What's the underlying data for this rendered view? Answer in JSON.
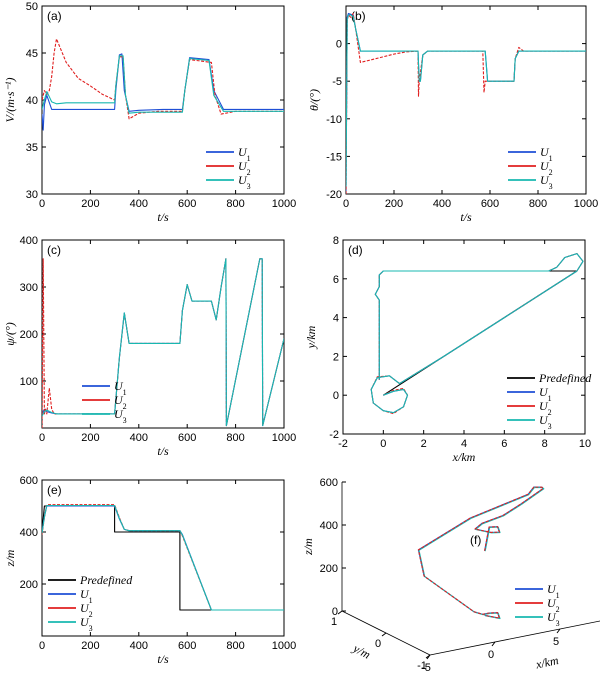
{
  "colors": {
    "U1": "#1f4fd6",
    "U2": "#e02020",
    "U3": "#18b8b0",
    "Predefined": "#000000"
  },
  "chart_data": [
    {
      "panel": "(a)",
      "type": "line",
      "xlabel": "t/s",
      "ylabel": "V/(m·s⁻¹)",
      "xlim": [
        0,
        1000
      ],
      "ylim": [
        30,
        50
      ],
      "xticks": [
        0,
        200,
        400,
        600,
        800,
        1000
      ],
      "yticks": [
        30,
        35,
        40,
        45,
        50
      ],
      "legend": [
        "U1",
        "U2",
        "U3"
      ],
      "legend_loc": "bottom-right",
      "series": [
        {
          "name": "U1",
          "x": [
            0,
            5,
            10,
            20,
            40,
            60,
            100,
            200,
            300,
            305,
            320,
            330,
            340,
            360,
            400,
            500,
            580,
            590,
            610,
            690,
            710,
            750,
            800,
            1000
          ],
          "y": [
            38.5,
            36.8,
            39.5,
            40.5,
            39,
            39,
            39,
            39,
            39,
            41,
            44.8,
            44.9,
            41,
            38.8,
            38.9,
            39,
            39,
            41,
            44.5,
            44.3,
            41,
            39,
            39,
            39
          ]
        },
        {
          "name": "U2",
          "x": [
            0,
            10,
            20,
            30,
            40,
            50,
            60,
            100,
            150,
            200,
            250,
            300,
            305,
            320,
            335,
            345,
            360,
            400,
            480,
            580,
            590,
            610,
            700,
            715,
            740,
            800,
            1000
          ],
          "y": [
            40,
            41,
            40.6,
            41,
            42.5,
            45,
            46.5,
            44,
            42.3,
            41.5,
            40.6,
            40,
            41.5,
            44.6,
            44.6,
            40.5,
            38,
            38.6,
            38.8,
            38.8,
            41,
            44.3,
            44,
            40.5,
            38.5,
            38.8,
            38.8
          ]
        },
        {
          "name": "U3",
          "x": [
            0,
            10,
            20,
            40,
            60,
            100,
            200,
            300,
            305,
            320,
            335,
            345,
            360,
            400,
            500,
            580,
            590,
            610,
            690,
            710,
            750,
            800,
            1000
          ],
          "y": [
            39,
            40,
            40.9,
            39.8,
            39.6,
            39.7,
            39.7,
            39.7,
            41.5,
            44.7,
            44.7,
            40.5,
            38.6,
            38.7,
            38.7,
            38.7,
            41,
            44.4,
            44.2,
            40.5,
            38.8,
            38.8,
            38.8
          ]
        }
      ]
    },
    {
      "panel": "(b)",
      "type": "line",
      "xlabel": "t/s",
      "ylabel": "θ/(°)",
      "xlim": [
        0,
        1000
      ],
      "ylim": [
        -20,
        5
      ],
      "xticks": [
        0,
        200,
        400,
        600,
        800,
        1000
      ],
      "yticks": [
        -20,
        -15,
        -10,
        -5,
        0
      ],
      "legend": [
        "U1",
        "U2",
        "U3"
      ],
      "legend_loc": "bottom-right",
      "series": [
        {
          "name": "U1",
          "x": [
            0,
            5,
            10,
            20,
            30,
            40,
            60,
            100,
            200,
            300,
            305,
            310,
            320,
            340,
            400,
            500,
            580,
            590,
            700,
            705,
            720,
            740,
            800,
            1000
          ],
          "y": [
            -20,
            3.5,
            4,
            3.9,
            3.8,
            2,
            -1,
            -1,
            -1,
            -1,
            -5,
            -5,
            -1.5,
            -1,
            -1,
            -1,
            -1,
            -5,
            -5,
            -2,
            -1,
            -1,
            -1,
            -1
          ]
        },
        {
          "name": "U2",
          "x": [
            0,
            5,
            10,
            20,
            30,
            40,
            60,
            100,
            150,
            200,
            250,
            300,
            302,
            305,
            320,
            340,
            400,
            500,
            570,
            575,
            580,
            590,
            700,
            705,
            720,
            740,
            800,
            1000
          ],
          "y": [
            -20,
            3,
            3.8,
            3.5,
            4,
            2,
            -2.5,
            -2.2,
            -1.8,
            -1.4,
            -1.1,
            -1,
            -7,
            -5,
            -1.5,
            -1,
            -1,
            -1,
            -1,
            -6.5,
            -5,
            -5,
            -5,
            -2,
            -0.5,
            -1,
            -1,
            -1
          ]
        },
        {
          "name": "U3",
          "x": [
            0,
            5,
            10,
            20,
            30,
            40,
            60,
            100,
            200,
            300,
            305,
            310,
            320,
            340,
            400,
            500,
            580,
            590,
            700,
            705,
            720,
            740,
            800,
            1000
          ],
          "y": [
            -19,
            3.2,
            3.8,
            3.8,
            3.6,
            2,
            -1,
            -1,
            -1,
            -1,
            -5,
            -5,
            -1.5,
            -1,
            -1,
            -1,
            -1,
            -5,
            -5,
            -2,
            -1,
            -1,
            -1,
            -1
          ]
        }
      ]
    },
    {
      "panel": "(c)",
      "type": "line",
      "xlabel": "t/s",
      "ylabel": "ψ/(°)",
      "xlim": [
        0,
        1000
      ],
      "ylim": [
        0,
        400
      ],
      "xticks": [
        0,
        200,
        400,
        600,
        800,
        1000
      ],
      "yticks": [
        100,
        200,
        300,
        400
      ],
      "legend": [
        "U1",
        "U2",
        "U3"
      ],
      "legend_loc": "bottom-left",
      "series": [
        {
          "name": "U1",
          "x": [
            0,
            10,
            20,
            40,
            60,
            100,
            200,
            300,
            320,
            340,
            360,
            400,
            500,
            570,
            580,
            600,
            620,
            660,
            700,
            720,
            740,
            760,
            762,
            900,
            910,
            912,
            1000
          ],
          "y": [
            30,
            40,
            35,
            32,
            30,
            30,
            30,
            30,
            150,
            245,
            180,
            180,
            180,
            180,
            250,
            305,
            270,
            270,
            270,
            230,
            300,
            360,
            5,
            360,
            360,
            5,
            190
          ]
        },
        {
          "name": "U2",
          "x": [
            0,
            5,
            10,
            15,
            20,
            30,
            40,
            50,
            60,
            100,
            200,
            300,
            320,
            340,
            360,
            400,
            500,
            570,
            580,
            600,
            620,
            660,
            700,
            720,
            740,
            760,
            762,
            900,
            910,
            912,
            1000
          ],
          "y": [
            0,
            360,
            30,
            40,
            30,
            85,
            40,
            30,
            30,
            30,
            30,
            30,
            150,
            245,
            180,
            180,
            180,
            180,
            250,
            305,
            270,
            270,
            270,
            230,
            300,
            360,
            5,
            360,
            360,
            5,
            190
          ]
        },
        {
          "name": "U3",
          "x": [
            0,
            10,
            20,
            40,
            60,
            100,
            200,
            300,
            320,
            340,
            360,
            400,
            500,
            570,
            580,
            600,
            620,
            660,
            700,
            720,
            740,
            760,
            762,
            900,
            910,
            912,
            1000
          ],
          "y": [
            25,
            35,
            38,
            33,
            30,
            30,
            30,
            30,
            150,
            245,
            180,
            180,
            180,
            180,
            250,
            305,
            270,
            270,
            270,
            230,
            300,
            360,
            5,
            360,
            360,
            5,
            190
          ]
        }
      ]
    },
    {
      "panel": "(d)",
      "type": "line",
      "xlabel": "x/km",
      "ylabel": "y/km",
      "xlim": [
        -2,
        10
      ],
      "ylim": [
        -2,
        8
      ],
      "xticks": [
        -2,
        0,
        2,
        4,
        6,
        8,
        10
      ],
      "yticks": [
        -2,
        0,
        2,
        4,
        6,
        8
      ],
      "legend": [
        "Predefined",
        "U1",
        "U2",
        "U3"
      ],
      "legend_loc": "bottom-right",
      "series": [
        {
          "name": "Predefined",
          "x": [
            0,
            9.6,
            9.4,
            8.2
          ],
          "y": [
            0,
            6.4,
            6.4,
            6.4
          ]
        },
        {
          "name": "U1",
          "x": [
            0,
            0.5,
            1,
            1.2,
            1,
            0.5,
            0,
            -0.5,
            -0.6,
            -0.3,
            0.3,
            0.8,
            3,
            6,
            9.6,
            9.9,
            9.6,
            9,
            8.6,
            8.2,
            4,
            0,
            -0.2,
            -0.2,
            -0.4,
            -0.2,
            -0.2
          ],
          "y": [
            0,
            0.2,
            0.3,
            0,
            -0.6,
            -0.9,
            -0.8,
            -0.4,
            0.3,
            0.9,
            1,
            0.6,
            2,
            4,
            6.4,
            6.9,
            7.3,
            7.1,
            6.6,
            6.4,
            6.4,
            6.4,
            6.2,
            5.6,
            5.2,
            4.9,
            0.8
          ]
        },
        {
          "name": "U2",
          "x": [
            0,
            0.5,
            1,
            1.2,
            1,
            0.5,
            0,
            -0.5,
            -0.6,
            -0.3,
            0.3,
            0.8,
            3,
            6,
            9.6,
            9.9,
            9.6,
            9,
            8.6,
            8.2,
            4,
            0,
            -0.2,
            -0.2,
            -0.4,
            -0.2,
            -0.2
          ],
          "y": [
            0,
            0.25,
            0.35,
            0,
            -0.6,
            -0.95,
            -0.8,
            -0.4,
            0.3,
            0.95,
            1,
            0.6,
            2,
            4,
            6.4,
            6.9,
            7.3,
            7.1,
            6.6,
            6.4,
            6.4,
            6.4,
            6.2,
            5.6,
            5.2,
            4.9,
            0.8
          ]
        },
        {
          "name": "U3",
          "x": [
            0,
            0.5,
            1,
            1.2,
            1,
            0.5,
            0,
            -0.5,
            -0.6,
            -0.3,
            0.3,
            0.8,
            3,
            6,
            9.6,
            9.9,
            9.6,
            9,
            8.6,
            8.2,
            4,
            0,
            -0.2,
            -0.2,
            -0.4,
            -0.2,
            -0.2
          ],
          "y": [
            0,
            0.2,
            0.3,
            0,
            -0.6,
            -0.9,
            -0.8,
            -0.4,
            0.3,
            0.9,
            1,
            0.6,
            2,
            4,
            6.4,
            6.9,
            7.3,
            7.1,
            6.6,
            6.4,
            6.4,
            6.4,
            6.2,
            5.6,
            5.2,
            4.9,
            0.8
          ]
        }
      ]
    },
    {
      "panel": "(e)",
      "type": "line",
      "xlabel": "t/s",
      "ylabel": "z/m",
      "xlim": [
        0,
        1000
      ],
      "ylim": [
        0,
        600
      ],
      "xticks": [
        0,
        200,
        400,
        600,
        800,
        1000
      ],
      "yticks": [
        200,
        400,
        600
      ],
      "legend": [
        "Predefined",
        "U1",
        "U2",
        "U3"
      ],
      "legend_loc": "bottom-left",
      "series": [
        {
          "name": "Predefined",
          "x": [
            0,
            10,
            300,
            300,
            570,
            570,
            1000
          ],
          "y": [
            400,
            500,
            500,
            400,
            400,
            100,
            100
          ]
        },
        {
          "name": "U1",
          "x": [
            0,
            10,
            20,
            40,
            300,
            320,
            340,
            360,
            400,
            500,
            570,
            580,
            700,
            710,
            1000
          ],
          "y": [
            400,
            460,
            500,
            500,
            500,
            450,
            410,
            405,
            405,
            405,
            405,
            390,
            100,
            100,
            100
          ]
        },
        {
          "name": "U2",
          "x": [
            0,
            10,
            20,
            40,
            300,
            320,
            340,
            360,
            400,
            500,
            570,
            580,
            700,
            710,
            1000
          ],
          "y": [
            390,
            455,
            505,
            505,
            505,
            455,
            410,
            405,
            405,
            405,
            405,
            385,
            100,
            100,
            100
          ]
        },
        {
          "name": "U3",
          "x": [
            0,
            10,
            20,
            40,
            300,
            320,
            340,
            360,
            400,
            500,
            570,
            580,
            700,
            710,
            1000
          ],
          "y": [
            395,
            458,
            502,
            502,
            502,
            452,
            410,
            405,
            405,
            405,
            405,
            388,
            100,
            100,
            100
          ]
        }
      ]
    },
    {
      "panel": "(f)",
      "type": "line3d",
      "xlabel": "x/km",
      "ylabel": "y/m",
      "zlabel": "z/m",
      "xticks": [
        -5,
        0,
        5,
        10
      ],
      "yticks": [
        -1,
        0,
        1
      ],
      "zticks": [
        0,
        200,
        400,
        600
      ],
      "legend": [
        "U1",
        "U2",
        "U3"
      ],
      "legend_loc": "right",
      "series": [
        {
          "name": "U1",
          "x": [
            0,
            0.5,
            1,
            0.5,
            0,
            -0.5,
            0.5,
            3,
            6,
            9.6,
            9.9,
            9.6,
            8.6,
            4,
            0,
            -0.2,
            -0.2,
            0,
            0.5,
            1,
            0.5,
            0
          ],
          "y": [
            0,
            0.2,
            0,
            -0.8,
            -0.6,
            0.3,
            0.9,
            2,
            4,
            6.4,
            6.9,
            7.3,
            6.6,
            6.4,
            6.4,
            5.6,
            0.8,
            0.2,
            0.2,
            0,
            -0.8,
            0
          ],
          "z": [
            400,
            500,
            500,
            500,
            500,
            500,
            500,
            480,
            450,
            420,
            410,
            405,
            400,
            350,
            250,
            150,
            100,
            100,
            100,
            100,
            100,
            100
          ]
        }
      ]
    }
  ],
  "panel_tags": [
    "(a)",
    "(b)",
    "(c)",
    "(d)",
    "(e)",
    "(f)"
  ]
}
